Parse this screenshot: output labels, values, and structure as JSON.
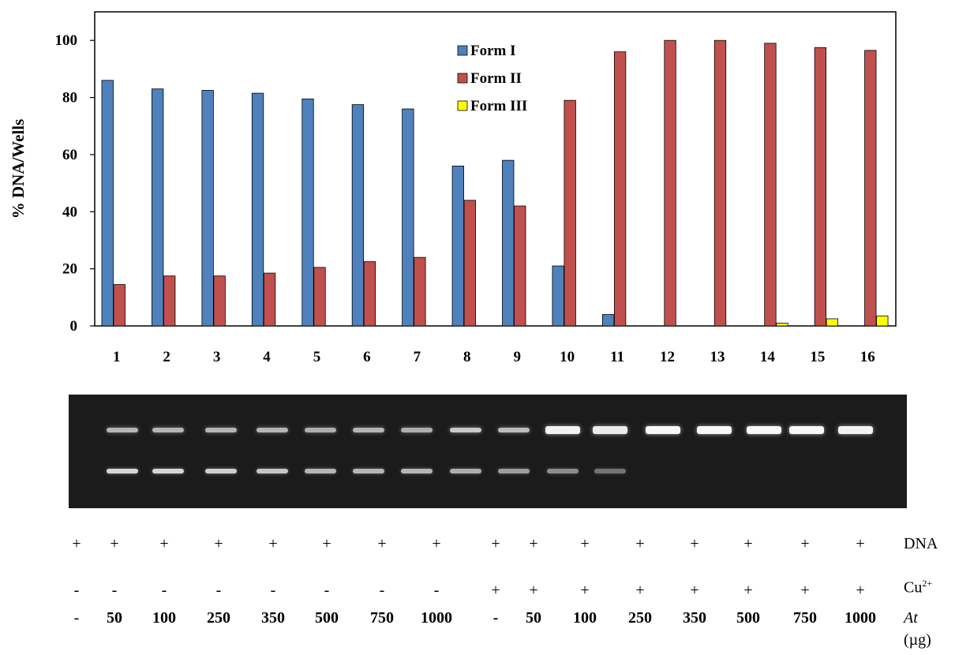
{
  "chart_data": {
    "type": "bar",
    "title": "",
    "xlabel": "",
    "ylabel": "% DNA/Wells",
    "ylim": [
      0,
      110
    ],
    "yticks": [
      "0",
      "20",
      "40",
      "60",
      "80",
      "100"
    ],
    "categories": [
      "1",
      "2",
      "3",
      "4",
      "5",
      "6",
      "7",
      "8",
      "9",
      "10",
      "11",
      "12",
      "13",
      "14",
      "15",
      "16"
    ],
    "legend_position": "top-center",
    "series": [
      {
        "name": "Form I",
        "color": "#4f81bd",
        "values": [
          86,
          83,
          82.5,
          81.5,
          79.5,
          77.5,
          76,
          56,
          58,
          21,
          4,
          0,
          0,
          0,
          0,
          0
        ]
      },
      {
        "name": "Form II",
        "color": "#c0504d",
        "values": [
          14.5,
          17.5,
          17.5,
          18.5,
          20.5,
          22.5,
          24,
          44,
          42,
          79,
          96,
          100,
          100,
          99,
          97.5,
          96.5
        ]
      },
      {
        "name": "Form III",
        "color": "#ffff00",
        "values": [
          0,
          0,
          0,
          0,
          0,
          0,
          0,
          0,
          0,
          0,
          0,
          0,
          0,
          1,
          2.5,
          3.5
        ]
      }
    ]
  },
  "gel": {
    "upper_band_intensity": [
      0.45,
      0.45,
      0.45,
      0.45,
      0.4,
      0.45,
      0.4,
      0.6,
      0.5,
      0.9,
      0.85,
      0.95,
      0.95,
      0.95,
      0.95,
      0.9
    ],
    "lower_band_intensity": [
      0.75,
      0.75,
      0.7,
      0.65,
      0.55,
      0.55,
      0.55,
      0.5,
      0.4,
      0.3,
      0.15,
      0,
      0,
      0,
      0,
      0
    ]
  },
  "table": {
    "dna": {
      "label": "DNA",
      "values": [
        "+",
        "+",
        "+",
        "+",
        "+",
        "+",
        "+",
        "+",
        "+",
        "+",
        "+",
        "+",
        "+",
        "+",
        "+",
        "+"
      ]
    },
    "cu": {
      "label": "Cu",
      "label_sup": "2+",
      "values": [
        "-",
        "-",
        "-",
        "-",
        "-",
        "-",
        "-",
        "-",
        "+",
        "+",
        "+",
        "+",
        "+",
        "+",
        "+",
        "+"
      ]
    },
    "at": {
      "label": "At",
      "unit": "(µg)",
      "values": [
        "-",
        "50",
        "100",
        "250",
        "350",
        "500",
        "750",
        "1000",
        "-",
        "50",
        "100",
        "250",
        "350",
        "500",
        "750",
        "1000"
      ]
    }
  }
}
